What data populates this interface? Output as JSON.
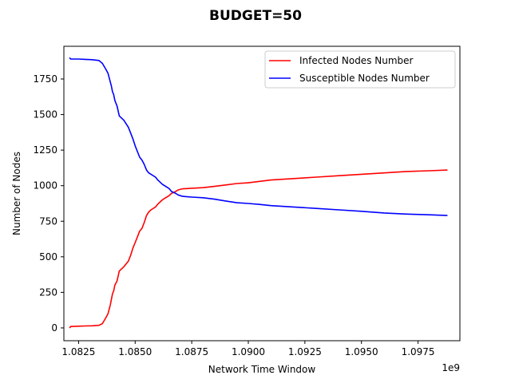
{
  "chart_data": {
    "type": "line",
    "title": "BUDGET=50",
    "xlabel": "Network Time Window",
    "ylabel": "Number of Nodes",
    "x_offset_label": "1e9",
    "xlim": [
      1.08185,
      1.09935
    ],
    "ylim": [
      -90,
      1980
    ],
    "xticks": [
      1.0825,
      1.085,
      1.0875,
      1.09,
      1.0925,
      1.095,
      1.0975
    ],
    "xtick_labels": [
      "1.0825",
      "1.0850",
      "1.0875",
      "1.0900",
      "1.0925",
      "1.0950",
      "1.0975"
    ],
    "yticks": [
      0,
      250,
      500,
      750,
      1000,
      1250,
      1500,
      1750
    ],
    "ytick_labels": [
      "0",
      "250",
      "500",
      "750",
      "1000",
      "1250",
      "1500",
      "1750"
    ],
    "grid": false,
    "legend_position": "top-right",
    "series": [
      {
        "name": "Infected Nodes Number",
        "color": "#ff0000",
        "x": [
          1.0821,
          1.08215,
          1.0825,
          1.0828,
          1.0831,
          1.0834,
          1.08355,
          1.0837,
          1.0838,
          1.0839,
          1.08395,
          1.084,
          1.08405,
          1.0841,
          1.0842,
          1.0843,
          1.0845,
          1.0847,
          1.0848,
          1.0849,
          1.085,
          1.0851,
          1.0852,
          1.0853,
          1.0854,
          1.0855,
          1.0856,
          1.0857,
          1.0859,
          1.086,
          1.0862,
          1.0863,
          1.0865,
          1.0866,
          1.0868,
          1.0869,
          1.0871,
          1.0873,
          1.0875,
          1.088,
          1.0885,
          1.089,
          1.0895,
          1.09,
          1.0905,
          1.091,
          1.092,
          1.093,
          1.094,
          1.095,
          1.096,
          1.097,
          1.098,
          1.0988
        ],
        "y": [
          0,
          10,
          12,
          14,
          15,
          18,
          30,
          70,
          100,
          160,
          200,
          240,
          260,
          300,
          330,
          400,
          430,
          470,
          510,
          560,
          600,
          640,
          680,
          700,
          740,
          790,
          815,
          830,
          850,
          870,
          900,
          910,
          930,
          945,
          960,
          970,
          978,
          980,
          982,
          986,
          995,
          1005,
          1015,
          1020,
          1030,
          1040,
          1050,
          1060,
          1070,
          1080,
          1090,
          1100,
          1105,
          1110
        ]
      },
      {
        "name": "Susceptible Nodes Number",
        "color": "#0000ff",
        "x": [
          1.0821,
          1.08215,
          1.0825,
          1.0828,
          1.0831,
          1.0834,
          1.08355,
          1.0837,
          1.0838,
          1.0839,
          1.08395,
          1.084,
          1.08405,
          1.0841,
          1.0842,
          1.0843,
          1.0845,
          1.0847,
          1.0848,
          1.0849,
          1.085,
          1.0851,
          1.0852,
          1.0853,
          1.0854,
          1.0855,
          1.0856,
          1.0857,
          1.0859,
          1.086,
          1.0862,
          1.0863,
          1.0865,
          1.0866,
          1.0868,
          1.0869,
          1.0871,
          1.0873,
          1.0875,
          1.088,
          1.0885,
          1.089,
          1.0895,
          1.09,
          1.0905,
          1.091,
          1.092,
          1.093,
          1.094,
          1.095,
          1.096,
          1.097,
          1.098,
          1.0988
        ],
        "y": [
          1900,
          1890,
          1890,
          1888,
          1886,
          1880,
          1860,
          1820,
          1790,
          1730,
          1700,
          1660,
          1640,
          1600,
          1560,
          1490,
          1460,
          1410,
          1370,
          1330,
          1280,
          1240,
          1200,
          1180,
          1150,
          1110,
          1090,
          1080,
          1060,
          1040,
          1010,
          1000,
          980,
          960,
          945,
          935,
          925,
          922,
          920,
          915,
          905,
          892,
          880,
          875,
          868,
          860,
          850,
          840,
          830,
          820,
          808,
          800,
          795,
          790
        ]
      }
    ]
  }
}
